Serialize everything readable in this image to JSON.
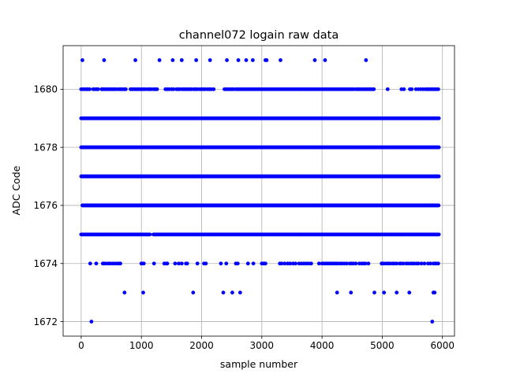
{
  "chart_data": {
    "type": "scatter",
    "title": "channel072 logain raw data",
    "xlabel": "sample number",
    "ylabel": "ADC Code",
    "xlim": [
      -300,
      6200
    ],
    "ylim": [
      1671.5,
      1681.5
    ],
    "xticks": [
      0,
      1000,
      2000,
      3000,
      4000,
      5000,
      6000
    ],
    "xtick_labels": [
      "0",
      "1000",
      "2000",
      "3000",
      "4000",
      "5000",
      "6000"
    ],
    "yticks": [
      1672,
      1674,
      1676,
      1678,
      1680
    ],
    "ytick_labels": [
      "1672",
      "1674",
      "1676",
      "1678",
      "1680"
    ],
    "grid": true,
    "marker_color": "#0000ff",
    "sample_range": [
      0,
      5940
    ],
    "levels": [
      {
        "code": 1672,
        "samples": [
          170,
          5830
        ]
      },
      {
        "code": 1673,
        "samples": [
          720,
          1030,
          1860,
          2360,
          2510,
          2640,
          4250,
          4480,
          4870,
          5030,
          5240,
          5450,
          5850,
          5870
        ]
      },
      {
        "code": 1674,
        "samples": [
          150,
          250,
          360,
          380,
          410,
          450,
          480,
          520,
          560,
          600,
          630,
          650,
          1000,
          1020,
          1040,
          1210,
          1380,
          1400,
          1430,
          1560,
          1620,
          1670,
          1740,
          1760,
          1930,
          2040,
          2070,
          2320,
          2410,
          2570,
          2600,
          2770,
          2860,
          3000,
          3020,
          3040,
          3060,
          3300,
          3330,
          3380,
          3430,
          3470,
          3520,
          3560,
          3620,
          3660,
          3700,
          3740,
          3780,
          3820,
          3950,
          4000,
          4030,
          4060,
          4090,
          4120,
          4150,
          4180,
          4210,
          4240,
          4270,
          4310,
          4330,
          4370,
          4410,
          4460,
          4490,
          4520,
          4560,
          4620,
          4660,
          4690,
          4720,
          4770,
          4990,
          5010,
          5030,
          5070,
          5100,
          5130,
          5170,
          5200,
          5240,
          5290,
          5310,
          5350,
          5400,
          5430,
          5470,
          5500,
          5530,
          5570,
          5600,
          5650,
          5700,
          5760,
          5800,
          5850,
          5880,
          5900,
          5930
        ]
      },
      {
        "code": 1675,
        "dense": [
          [
            0,
            1150
          ],
          [
            1200,
            5940
          ]
        ]
      },
      {
        "code": 1676,
        "dense": [
          [
            20,
            5940
          ]
        ]
      },
      {
        "code": 1677,
        "dense": [
          [
            0,
            5940
          ]
        ]
      },
      {
        "code": 1678,
        "dense": [
          [
            0,
            5940
          ]
        ]
      },
      {
        "code": 1679,
        "dense": [
          [
            0,
            5940
          ]
        ]
      },
      {
        "code": 1680,
        "samples": [
          0,
          30,
          60,
          90,
          110,
          140,
          200,
          230,
          260,
          280,
          340,
          360,
          380,
          410,
          440,
          470,
          500,
          520,
          550,
          580,
          620,
          650,
          680,
          710,
          740,
          820,
          850,
          880,
          910,
          940,
          970,
          1000,
          1030,
          1060,
          1100,
          1130,
          1160,
          1200,
          1230,
          1260,
          1400,
          1430,
          1460,
          1500,
          1530,
          1580,
          1610,
          1640,
          1680,
          1710,
          1740,
          1770,
          1800,
          1830,
          1870,
          1900,
          1930,
          1970,
          2000,
          2030,
          2060,
          2100,
          2130,
          2160,
          2200,
          2380,
          2410,
          2440,
          2470,
          2500,
          2530,
          2570,
          2600,
          2630,
          2660,
          2690,
          2720,
          2750,
          2780,
          2810,
          2840,
          2870,
          2900,
          2930,
          2960,
          2990,
          3020,
          3050,
          3080,
          3110,
          3140,
          3170,
          3200,
          3230,
          3260,
          3290,
          3320,
          3350,
          3380,
          3410,
          3440,
          3470,
          3500,
          3530,
          3560,
          3590,
          3620,
          3650,
          3680,
          3710,
          3740,
          3770,
          3800,
          3830,
          3860,
          3890,
          3920,
          3950,
          3980,
          4010,
          4040,
          4070,
          4100,
          4130,
          4160,
          4190,
          4220,
          4250,
          4280,
          4310,
          4340,
          4370,
          4400,
          4430,
          4460,
          4490,
          4520,
          4560,
          4590,
          4620,
          4650,
          4680,
          4710,
          4740,
          4770,
          4800,
          4830,
          4860,
          5090,
          5320,
          5360,
          5460,
          5490,
          5560,
          5600,
          5640,
          5680,
          5720,
          5750,
          5780,
          5810,
          5840,
          5870,
          5900,
          5930
        ]
      },
      {
        "code": 1681,
        "samples": [
          20,
          380,
          900,
          1300,
          1520,
          1670,
          1910,
          2140,
          2420,
          2610,
          2740,
          2850,
          3060,
          3080,
          3310,
          3880,
          4050,
          4730
        ]
      }
    ]
  }
}
